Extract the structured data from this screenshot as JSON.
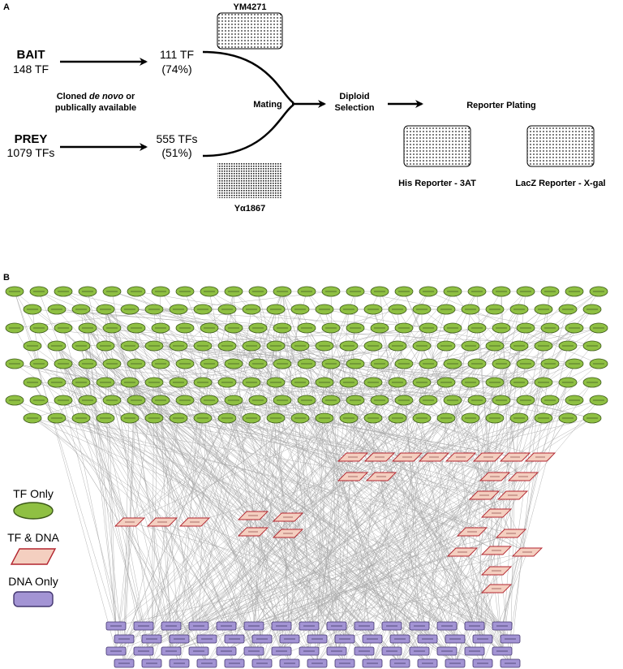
{
  "panel_a": {
    "label": "A",
    "bait": {
      "title": "BAIT",
      "count": "148 TF",
      "result_count": "111 TF",
      "result_pct": "(74%)"
    },
    "prey": {
      "title": "PREY",
      "count": "1079 TFs",
      "result_count": "555 TFs",
      "result_pct": "(51%)"
    },
    "cloned_line1_prefix": "Cloned ",
    "cloned_line1_italic": "de novo",
    "cloned_line1_suffix": " or",
    "cloned_line2": "publically available",
    "strain_top": "YM4271",
    "strain_bottom": "Yα1867",
    "mating": "Mating",
    "diploid_line1": "Diploid",
    "diploid_line2": "Selection",
    "reporter_plating": "Reporter Plating",
    "his_reporter": "His Reporter - 3AT",
    "lacz_reporter": "LacZ Reporter - X-gal"
  },
  "panel_b": {
    "label": "B",
    "legend": {
      "tf_only": "TF Only",
      "tf_dna": "TF & DNA",
      "dna_only": "DNA Only"
    },
    "colors": {
      "tf_fill": "#8fc043",
      "tf_stroke": "#3d5a1a",
      "tfdna_fill": "#f4cfc0",
      "tfdna_stroke": "#b3252f",
      "dna_fill": "#a394d4",
      "dna_stroke": "#43366f",
      "edge": "#a8a8a8"
    }
  }
}
